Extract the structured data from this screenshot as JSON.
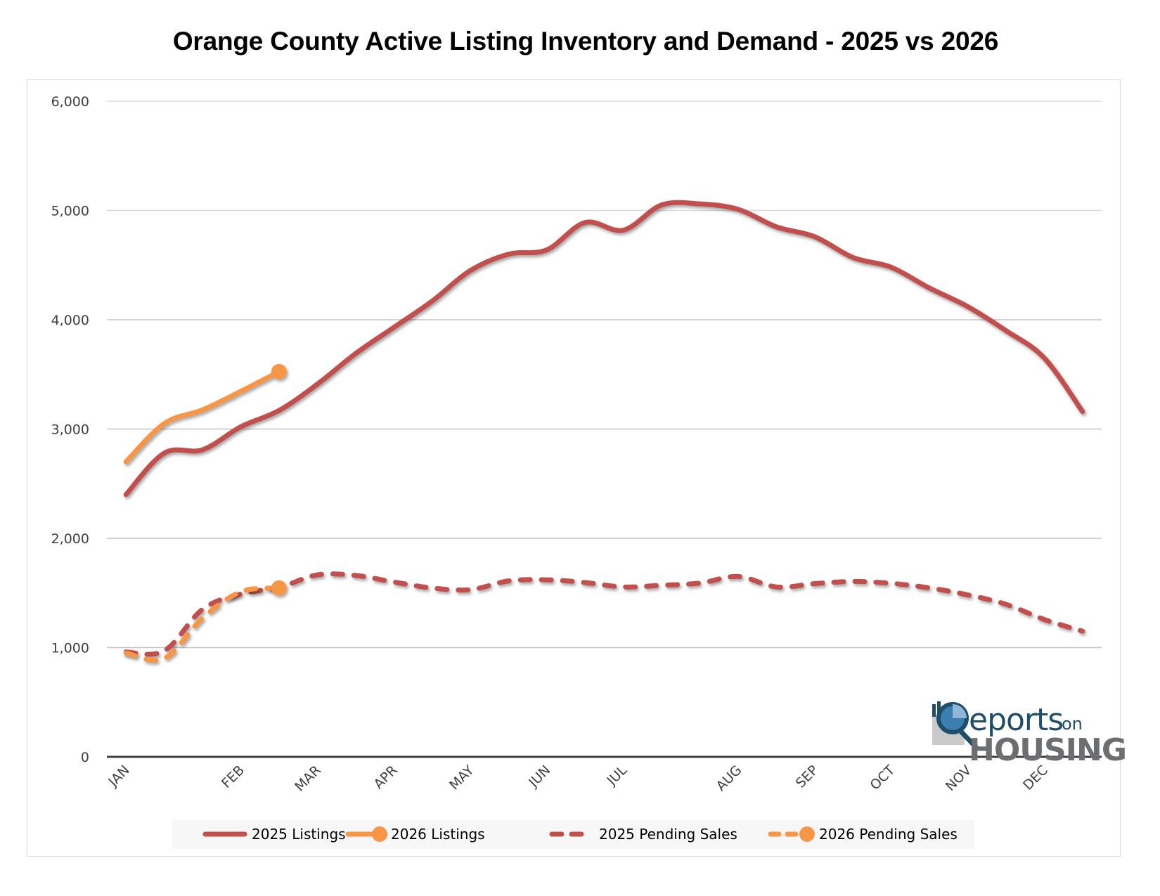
{
  "chart_data": {
    "type": "line",
    "title": "Orange County Active Listing Inventory and Demand - 2025 vs 2026",
    "xlabel": "",
    "ylabel": "",
    "ylim": [
      0,
      6000
    ],
    "yticks": [
      0,
      1000,
      2000,
      3000,
      4000,
      5000,
      6000
    ],
    "ytick_labels": [
      "0",
      "1,000",
      "2,000",
      "3,000",
      "4,000",
      "5,000",
      "6,000"
    ],
    "grid": true,
    "legend_position": "bottom",
    "x_count": 26,
    "x_tick_labels": [
      {
        "index": 0,
        "label": "JAN"
      },
      {
        "index": 3,
        "label": "FEB"
      },
      {
        "index": 5,
        "label": "MAR"
      },
      {
        "index": 7,
        "label": "APR"
      },
      {
        "index": 9,
        "label": "MAY"
      },
      {
        "index": 11,
        "label": "JUN"
      },
      {
        "index": 13,
        "label": "JUL"
      },
      {
        "index": 16,
        "label": "AUG"
      },
      {
        "index": 18,
        "label": "SEP"
      },
      {
        "index": 20,
        "label": "OCT"
      },
      {
        "index": 22,
        "label": "NOV"
      },
      {
        "index": 24,
        "label": "DEC"
      }
    ],
    "series": [
      {
        "name": "2025 Listings",
        "color": "#c0504d",
        "style": "solid",
        "end_marker": false,
        "values": [
          2400,
          2780,
          2810,
          3020,
          3170,
          3410,
          3690,
          3930,
          4170,
          4450,
          4600,
          4640,
          4890,
          4820,
          5050,
          5060,
          5010,
          4850,
          4760,
          4570,
          4480,
          4290,
          4120,
          3900,
          3650,
          3160
        ]
      },
      {
        "name": "2026 Listings",
        "color": "#f79646",
        "style": "solid",
        "end_marker": true,
        "values": [
          2700,
          3050,
          3175,
          3345,
          3525
        ]
      },
      {
        "name": "2025 Pending Sales",
        "color": "#c0504d",
        "style": "dashed",
        "end_marker": false,
        "values": [
          960,
          970,
          1350,
          1490,
          1550,
          1665,
          1660,
          1600,
          1545,
          1530,
          1610,
          1620,
          1595,
          1555,
          1570,
          1590,
          1650,
          1555,
          1585,
          1605,
          1588,
          1546,
          1482,
          1396,
          1257,
          1150
        ]
      },
      {
        "name": "2026 Pending Sales",
        "color": "#f79646",
        "style": "dashed",
        "end_marker": true,
        "values": [
          950,
          900,
          1270,
          1510,
          1545
        ]
      }
    ]
  },
  "logo": {
    "reports": "eports",
    "on": "on",
    "housing": "HOUSING"
  }
}
